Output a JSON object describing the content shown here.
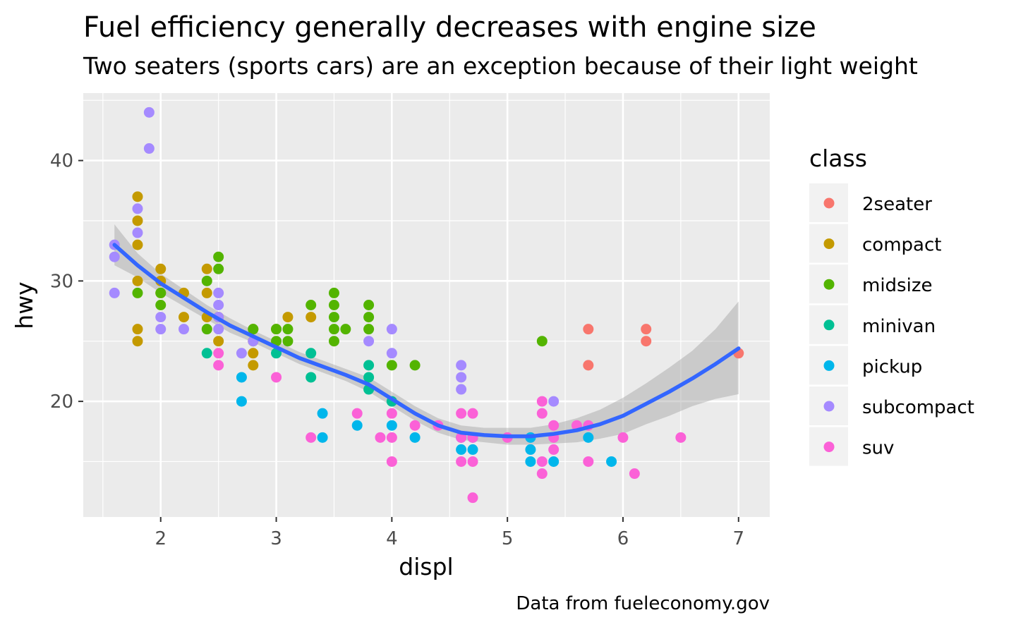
{
  "chart_data": {
    "type": "scatter",
    "title": "Fuel efficiency generally decreases with engine size",
    "subtitle": "Two seaters (sports cars) are an exception because of their light weight",
    "caption": "Data from fueleconomy.gov",
    "xlabel": "displ",
    "ylabel": "hwy",
    "xlim": [
      1.33,
      7.27
    ],
    "ylim": [
      10.4,
      45.6
    ],
    "x_ticks": [
      "2",
      "3",
      "4",
      "5",
      "6",
      "7"
    ],
    "y_ticks": [
      "20",
      "30",
      "40"
    ],
    "grid": true,
    "legend": {
      "title": "class",
      "position": "right",
      "entries": [
        {
          "label": "2seater",
          "color": "#F8766D"
        },
        {
          "label": "compact",
          "color": "#C49A00"
        },
        {
          "label": "midsize",
          "color": "#53B400"
        },
        {
          "label": "minivan",
          "color": "#00C094"
        },
        {
          "label": "pickup",
          "color": "#00B6EB"
        },
        {
          "label": "subcompact",
          "color": "#A58AFF"
        },
        {
          "label": "suv",
          "color": "#FB61D7"
        }
      ]
    },
    "series": [
      {
        "name": "2seater",
        "color": "#F8766D",
        "points": [
          [
            5.7,
            26
          ],
          [
            5.7,
            23
          ],
          [
            6.2,
            26
          ],
          [
            6.2,
            25
          ],
          [
            7.0,
            24
          ]
        ]
      },
      {
        "name": "compact",
        "color": "#C49A00",
        "points": [
          [
            1.8,
            37
          ],
          [
            1.8,
            35
          ],
          [
            1.8,
            33
          ],
          [
            1.8,
            30
          ],
          [
            1.8,
            26
          ],
          [
            1.8,
            25
          ],
          [
            2.0,
            31
          ],
          [
            2.0,
            30
          ],
          [
            2.0,
            29
          ],
          [
            2.2,
            29
          ],
          [
            2.2,
            27
          ],
          [
            2.4,
            31
          ],
          [
            2.4,
            29
          ],
          [
            2.4,
            27
          ],
          [
            2.5,
            27
          ],
          [
            2.5,
            25
          ],
          [
            2.8,
            26
          ],
          [
            2.8,
            24
          ],
          [
            2.8,
            23
          ],
          [
            2.8,
            25
          ],
          [
            3.0,
            26
          ],
          [
            3.1,
            27
          ],
          [
            3.3,
            27
          ]
        ]
      },
      {
        "name": "midsize",
        "color": "#53B400",
        "points": [
          [
            1.8,
            29
          ],
          [
            2.0,
            29
          ],
          [
            2.0,
            28
          ],
          [
            2.4,
            30
          ],
          [
            2.4,
            26
          ],
          [
            2.5,
            32
          ],
          [
            2.5,
            31
          ],
          [
            2.8,
            26
          ],
          [
            3.0,
            26
          ],
          [
            3.0,
            25
          ],
          [
            3.1,
            26
          ],
          [
            3.1,
            25
          ],
          [
            3.3,
            28
          ],
          [
            3.5,
            29
          ],
          [
            3.5,
            28
          ],
          [
            3.5,
            27
          ],
          [
            3.5,
            26
          ],
          [
            3.5,
            25
          ],
          [
            3.6,
            26
          ],
          [
            3.8,
            28
          ],
          [
            3.8,
            27
          ],
          [
            3.8,
            26
          ],
          [
            4.0,
            23
          ],
          [
            4.2,
            23
          ],
          [
            5.3,
            25
          ]
        ]
      },
      {
        "name": "minivan",
        "color": "#00C094",
        "points": [
          [
            2.4,
            24
          ],
          [
            3.0,
            24
          ],
          [
            3.3,
            24
          ],
          [
            3.3,
            22
          ],
          [
            3.8,
            23
          ],
          [
            3.8,
            22
          ],
          [
            3.8,
            21
          ],
          [
            4.0,
            20
          ]
        ]
      },
      {
        "name": "pickup",
        "color": "#00B6EB",
        "points": [
          [
            2.7,
            22
          ],
          [
            2.7,
            20
          ],
          [
            3.4,
            19
          ],
          [
            3.4,
            17
          ],
          [
            3.7,
            18
          ],
          [
            4.0,
            18
          ],
          [
            4.2,
            17
          ],
          [
            4.6,
            17
          ],
          [
            4.6,
            16
          ],
          [
            4.7,
            17
          ],
          [
            4.7,
            16
          ],
          [
            5.2,
            17
          ],
          [
            5.2,
            16
          ],
          [
            5.2,
            15
          ],
          [
            5.4,
            15
          ],
          [
            5.7,
            17
          ],
          [
            5.9,
            15
          ]
        ]
      },
      {
        "name": "subcompact",
        "color": "#A58AFF",
        "points": [
          [
            1.6,
            33
          ],
          [
            1.6,
            32
          ],
          [
            1.6,
            29
          ],
          [
            1.8,
            36
          ],
          [
            1.8,
            34
          ],
          [
            1.9,
            44
          ],
          [
            1.9,
            41
          ],
          [
            2.0,
            27
          ],
          [
            2.0,
            26
          ],
          [
            2.2,
            26
          ],
          [
            2.5,
            29
          ],
          [
            2.5,
            28
          ],
          [
            2.5,
            27
          ],
          [
            2.5,
            26
          ],
          [
            2.7,
            24
          ],
          [
            2.8,
            25
          ],
          [
            3.8,
            25
          ],
          [
            4.0,
            26
          ],
          [
            4.0,
            24
          ],
          [
            4.6,
            23
          ],
          [
            4.6,
            22
          ],
          [
            4.6,
            21
          ],
          [
            5.4,
            20
          ]
        ]
      },
      {
        "name": "suv",
        "color": "#FB61D7",
        "points": [
          [
            2.5,
            24
          ],
          [
            2.5,
            23
          ],
          [
            3.0,
            22
          ],
          [
            3.3,
            17
          ],
          [
            3.7,
            19
          ],
          [
            3.9,
            17
          ],
          [
            4.0,
            19
          ],
          [
            4.0,
            17
          ],
          [
            4.0,
            15
          ],
          [
            4.2,
            18
          ],
          [
            4.4,
            18
          ],
          [
            4.6,
            19
          ],
          [
            4.6,
            17
          ],
          [
            4.6,
            15
          ],
          [
            4.7,
            19
          ],
          [
            4.7,
            17
          ],
          [
            4.7,
            15
          ],
          [
            4.7,
            12
          ],
          [
            5.0,
            17
          ],
          [
            5.3,
            20
          ],
          [
            5.3,
            19
          ],
          [
            5.3,
            15
          ],
          [
            5.3,
            14
          ],
          [
            5.4,
            18
          ],
          [
            5.4,
            17
          ],
          [
            5.4,
            16
          ],
          [
            5.6,
            18
          ],
          [
            5.7,
            18
          ],
          [
            5.7,
            15
          ],
          [
            6.0,
            17
          ],
          [
            6.1,
            14
          ],
          [
            6.5,
            17
          ]
        ]
      }
    ],
    "smooth": {
      "color": "#3366FF",
      "band_color": "#999999",
      "points": [
        [
          1.6,
          33.0
        ],
        [
          1.8,
          31.3
        ],
        [
          2.0,
          29.8
        ],
        [
          2.2,
          28.6
        ],
        [
          2.4,
          27.4
        ],
        [
          2.6,
          26.3
        ],
        [
          2.8,
          25.4
        ],
        [
          3.0,
          24.5
        ],
        [
          3.2,
          23.6
        ],
        [
          3.4,
          22.9
        ],
        [
          3.6,
          22.2
        ],
        [
          3.8,
          21.4
        ],
        [
          4.0,
          20.2
        ],
        [
          4.2,
          19.0
        ],
        [
          4.4,
          18.0
        ],
        [
          4.6,
          17.4
        ],
        [
          4.8,
          17.2
        ],
        [
          5.0,
          17.1
        ],
        [
          5.2,
          17.1
        ],
        [
          5.4,
          17.3
        ],
        [
          5.6,
          17.6
        ],
        [
          5.8,
          18.1
        ],
        [
          6.0,
          18.8
        ],
        [
          6.2,
          19.8
        ],
        [
          6.4,
          20.8
        ],
        [
          6.6,
          21.9
        ],
        [
          6.8,
          23.1
        ],
        [
          7.0,
          24.4
        ]
      ],
      "band_upper": [
        [
          1.6,
          34.7
        ],
        [
          1.8,
          32.3
        ],
        [
          2.0,
          30.6
        ],
        [
          2.2,
          29.3
        ],
        [
          2.4,
          28.0
        ],
        [
          2.6,
          26.9
        ],
        [
          2.8,
          25.9
        ],
        [
          3.0,
          25.0
        ],
        [
          3.2,
          24.1
        ],
        [
          3.4,
          23.4
        ],
        [
          3.6,
          22.7
        ],
        [
          3.8,
          22.0
        ],
        [
          4.0,
          20.8
        ],
        [
          4.2,
          19.6
        ],
        [
          4.4,
          18.6
        ],
        [
          4.6,
          18.0
        ],
        [
          4.8,
          17.8
        ],
        [
          5.0,
          17.8
        ],
        [
          5.2,
          17.8
        ],
        [
          5.4,
          18.1
        ],
        [
          5.6,
          18.6
        ],
        [
          5.8,
          19.3
        ],
        [
          6.0,
          20.3
        ],
        [
          6.2,
          21.5
        ],
        [
          6.4,
          22.8
        ],
        [
          6.6,
          24.2
        ],
        [
          6.8,
          26.0
        ],
        [
          7.0,
          28.3
        ]
      ],
      "band_lower": [
        [
          1.6,
          31.3
        ],
        [
          1.8,
          30.3
        ],
        [
          2.0,
          29.0
        ],
        [
          2.2,
          27.9
        ],
        [
          2.4,
          26.8
        ],
        [
          2.6,
          25.7
        ],
        [
          2.8,
          24.9
        ],
        [
          3.0,
          24.0
        ],
        [
          3.2,
          23.1
        ],
        [
          3.4,
          22.4
        ],
        [
          3.6,
          21.7
        ],
        [
          3.8,
          20.8
        ],
        [
          4.0,
          19.6
        ],
        [
          4.2,
          18.4
        ],
        [
          4.4,
          17.4
        ],
        [
          4.6,
          16.8
        ],
        [
          4.8,
          16.6
        ],
        [
          5.0,
          16.4
        ],
        [
          5.2,
          16.4
        ],
        [
          5.4,
          16.5
        ],
        [
          5.6,
          16.6
        ],
        [
          5.8,
          16.9
        ],
        [
          6.0,
          17.3
        ],
        [
          6.2,
          18.1
        ],
        [
          6.4,
          18.8
        ],
        [
          6.6,
          19.6
        ],
        [
          6.8,
          20.2
        ],
        [
          7.0,
          20.6
        ]
      ]
    }
  }
}
